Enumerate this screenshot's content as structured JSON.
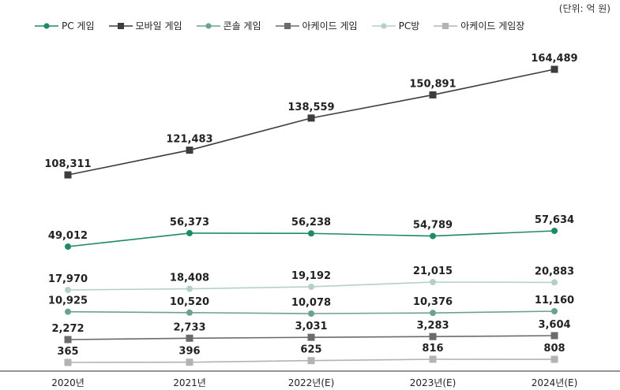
{
  "unit_label": "(단위: 억 원)",
  "chart_data": {
    "type": "line",
    "categories": [
      "2020년",
      "2021년",
      "2022년(E)",
      "2023년(E)",
      "2024년(E)"
    ],
    "series": [
      {
        "name": "PC 게임",
        "values": [
          49012,
          56373,
          56238,
          54789,
          57634
        ],
        "color": "#1e8a68",
        "marker": "circle"
      },
      {
        "name": "모바일 게임",
        "values": [
          108311,
          121483,
          138559,
          150891,
          164489
        ],
        "color": "#3d3d3d",
        "marker": "square"
      },
      {
        "name": "콘솔 게임",
        "values": [
          10925,
          10520,
          10078,
          10376,
          11160
        ],
        "color": "#6aa38c",
        "marker": "circle"
      },
      {
        "name": "아케이드 게임",
        "values": [
          2272,
          2733,
          3031,
          3283,
          3604
        ],
        "color": "#6b6b6b",
        "marker": "square"
      },
      {
        "name": "PC방",
        "values": [
          17970,
          18408,
          19192,
          21015,
          20883
        ],
        "color": "#b5d1c6",
        "marker": "circle"
      },
      {
        "name": "아케이드 게임장",
        "values": [
          365,
          396,
          625,
          816,
          808
        ],
        "color": "#b3b3b3",
        "marker": "square"
      }
    ],
    "value_labels": [
      [
        "49,012",
        "56,373",
        "56,238",
        "54,789",
        "57,634"
      ],
      [
        "108,311",
        "121,483",
        "138,559",
        "150,891",
        "164,489"
      ],
      [
        "10,925",
        "10,520",
        "10,078",
        "10,376",
        "11,160"
      ],
      [
        "2,272",
        "2,733",
        "3,031",
        "3,283",
        "3,604"
      ],
      [
        "17,970",
        "18,408",
        "19,192",
        "21,015",
        "20,883"
      ],
      [
        "365",
        "396",
        "625",
        "816",
        "808"
      ]
    ],
    "grid": false,
    "legend_position": "top-left"
  }
}
